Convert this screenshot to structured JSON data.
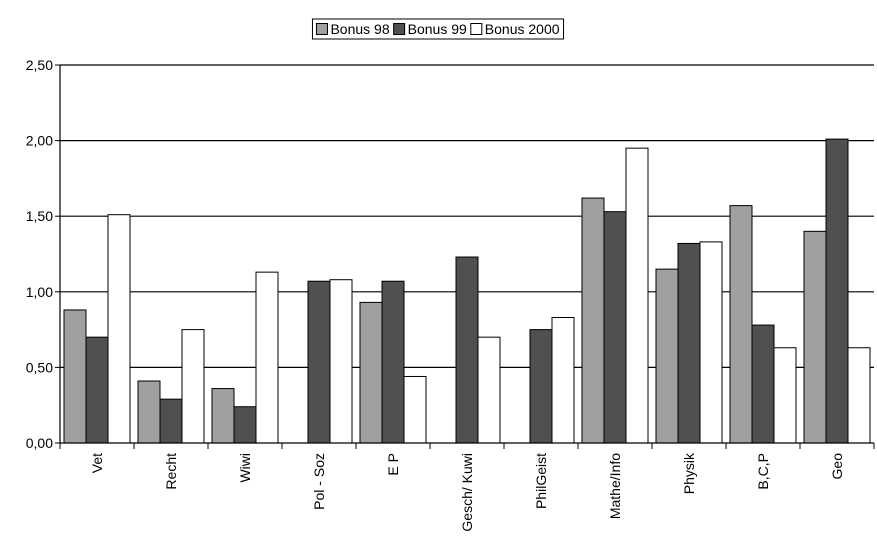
{
  "chart_data": {
    "type": "bar",
    "title": "",
    "xlabel": "",
    "ylabel": "",
    "ylim": [
      0,
      2.5
    ],
    "yticks": [
      "0,00",
      "0,50",
      "1,00",
      "1,50",
      "2,00",
      "2,50"
    ],
    "grid": true,
    "legend_position": "top-center",
    "categories": [
      "Vet",
      "Recht",
      "Wiwi",
      "Pol - Soz",
      "E P",
      "Gesch/ Kuwi",
      "PhilGeist",
      "Mathe/Info",
      "Physik",
      "B,C,P",
      "Geo"
    ],
    "series": [
      {
        "name": "Bonus 98",
        "color": "#a0a0a0",
        "values": [
          0.88,
          0.41,
          0.36,
          0,
          0.93,
          0,
          0,
          1.62,
          1.15,
          1.57,
          1.4
        ]
      },
      {
        "name": "Bonus 99",
        "color": "#505050",
        "values": [
          0.7,
          0.29,
          0.24,
          1.07,
          1.07,
          1.23,
          0.75,
          1.53,
          1.32,
          0.78,
          2.01
        ]
      },
      {
        "name": "Bonus 2000",
        "color": "#ffffff",
        "values": [
          1.51,
          0.75,
          1.13,
          1.08,
          0.44,
          0.7,
          0.83,
          1.95,
          1.33,
          0.63,
          0.63
        ]
      }
    ]
  }
}
